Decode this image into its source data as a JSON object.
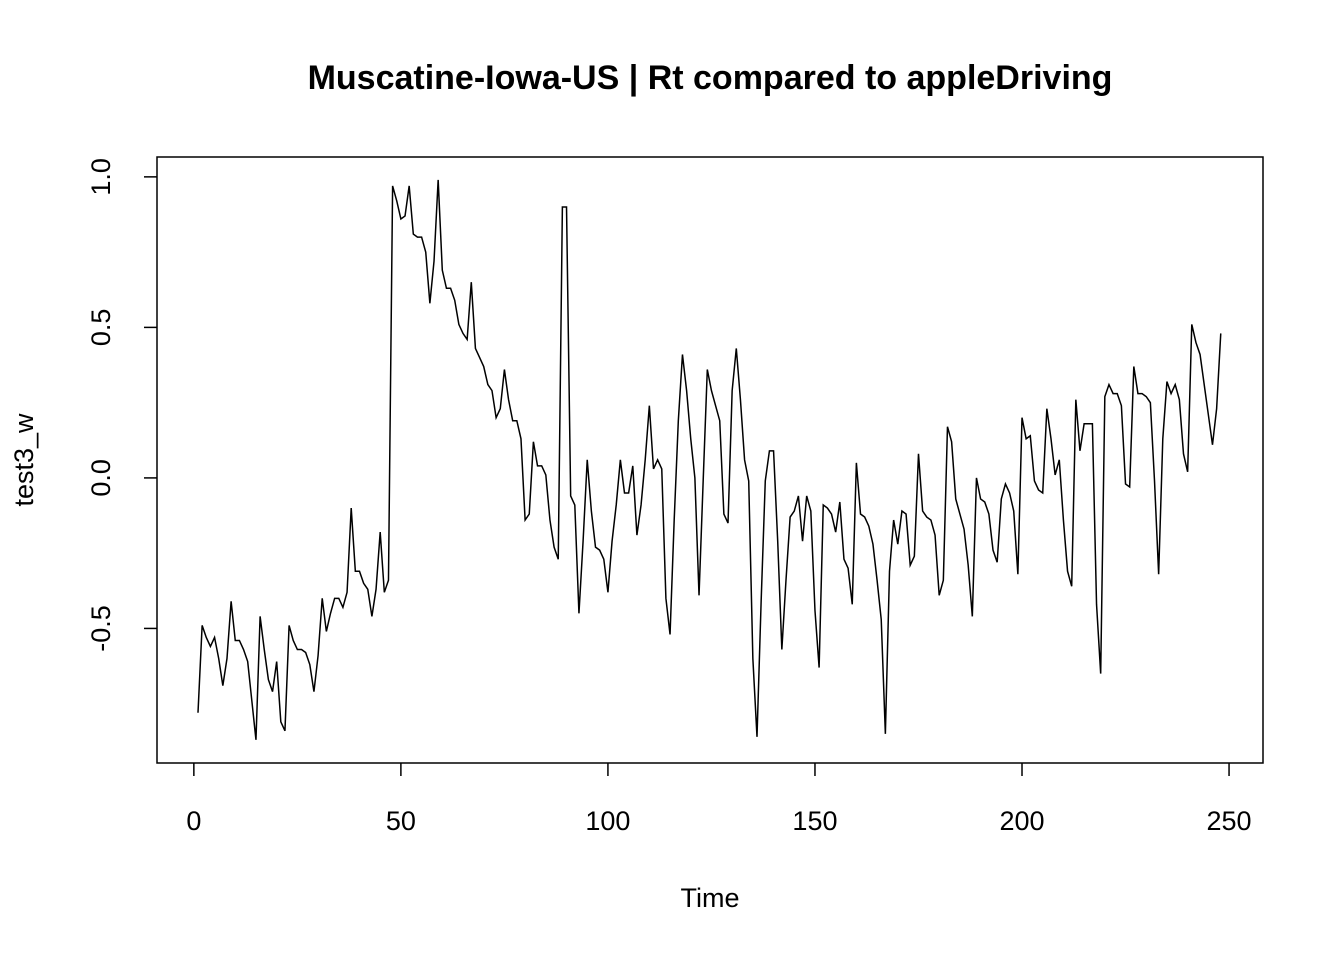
{
  "chart_data": {
    "type": "line",
    "title": "Muscatine-Iowa-US | Rt compared to appleDriving",
    "x_label": "Time",
    "y_label": "test3_w",
    "x": [
      1,
      2,
      3,
      4,
      5,
      6,
      7,
      8,
      9,
      10,
      11,
      12,
      13,
      14,
      15,
      16,
      17,
      18,
      19,
      20,
      21,
      22,
      23,
      24,
      25,
      26,
      27,
      28,
      29,
      30,
      31,
      32,
      33,
      34,
      35,
      36,
      37,
      38,
      39,
      40,
      41,
      42,
      43,
      44,
      45,
      46,
      47,
      48,
      49,
      50,
      51,
      52,
      53,
      54,
      55,
      56,
      57,
      58,
      59,
      60,
      61,
      62,
      63,
      64,
      65,
      66,
      67,
      68,
      69,
      70,
      71,
      72,
      73,
      74,
      75,
      76,
      77,
      78,
      79,
      80,
      81,
      82,
      83,
      84,
      85,
      86,
      87,
      88,
      89,
      90,
      91,
      92,
      93,
      94,
      95,
      96,
      97,
      98,
      99,
      100,
      101,
      102,
      103,
      104,
      105,
      106,
      107,
      108,
      109,
      110,
      111,
      112,
      113,
      114,
      115,
      116,
      117,
      118,
      119,
      120,
      121,
      122,
      123,
      124,
      125,
      126,
      127,
      128,
      129,
      130,
      131,
      132,
      133,
      134,
      135,
      136,
      137,
      138,
      139,
      140,
      141,
      142,
      143,
      144,
      145,
      146,
      147,
      148,
      149,
      150,
      151,
      152,
      153,
      154,
      155,
      156,
      157,
      158,
      159,
      160,
      161,
      162,
      163,
      164,
      165,
      166,
      167,
      168,
      169,
      170,
      171,
      172,
      173,
      174,
      175,
      176,
      177,
      178,
      179,
      180,
      181,
      182,
      183,
      184,
      185,
      186,
      187,
      188,
      189,
      190,
      191,
      192,
      193,
      194,
      195,
      196,
      197,
      198,
      199,
      200,
      201,
      202,
      203,
      204,
      205,
      206,
      207,
      208,
      209,
      210,
      211,
      212,
      213,
      214,
      215,
      216,
      217,
      218,
      219,
      220,
      221,
      222,
      223,
      224,
      225,
      226,
      227,
      228,
      229,
      230,
      231,
      232,
      233,
      234,
      235,
      236,
      237,
      238,
      239,
      240,
      241,
      242,
      243,
      244,
      245,
      246,
      247,
      248
    ],
    "series": [
      {
        "color": "#000000",
        "values": [
          -0.78,
          -0.49,
          -0.53,
          -0.56,
          -0.53,
          -0.6,
          -0.69,
          -0.6,
          -0.41,
          -0.54,
          -0.54,
          -0.57,
          -0.61,
          -0.74,
          -0.87,
          -0.46,
          -0.57,
          -0.67,
          -0.71,
          -0.61,
          -0.81,
          -0.84,
          -0.49,
          -0.54,
          -0.57,
          -0.57,
          -0.58,
          -0.62,
          -0.71,
          -0.59,
          -0.4,
          -0.51,
          -0.45,
          -0.4,
          -0.4,
          -0.43,
          -0.38,
          -0.1,
          -0.31,
          -0.31,
          -0.35,
          -0.37,
          -0.46,
          -0.37,
          -0.18,
          -0.38,
          -0.34,
          0.97,
          0.92,
          0.86,
          0.87,
          0.97,
          0.81,
          0.8,
          0.8,
          0.75,
          0.58,
          0.72,
          0.99,
          0.69,
          0.63,
          0.63,
          0.59,
          0.51,
          0.48,
          0.46,
          0.65,
          0.43,
          0.4,
          0.37,
          0.31,
          0.29,
          0.2,
          0.23,
          0.36,
          0.26,
          0.19,
          0.19,
          0.13,
          -0.14,
          -0.12,
          0.12,
          0.04,
          0.04,
          0.01,
          -0.14,
          -0.23,
          -0.27,
          0.9,
          0.9,
          -0.06,
          -0.09,
          -0.45,
          -0.21,
          0.06,
          -0.11,
          -0.23,
          -0.24,
          -0.27,
          -0.38,
          -0.21,
          -0.09,
          0.06,
          -0.05,
          -0.05,
          0.04,
          -0.19,
          -0.09,
          0.06,
          0.24,
          0.03,
          0.06,
          0.03,
          -0.4,
          -0.52,
          -0.14,
          0.19,
          0.41,
          0.29,
          0.13,
          0.0,
          -0.39,
          -0.01,
          0.36,
          0.29,
          0.24,
          0.19,
          -0.12,
          -0.15,
          0.29,
          0.43,
          0.26,
          0.06,
          -0.01,
          -0.6,
          -0.86,
          -0.41,
          -0.01,
          0.09,
          0.09,
          -0.21,
          -0.57,
          -0.34,
          -0.13,
          -0.11,
          -0.06,
          -0.21,
          -0.06,
          -0.11,
          -0.44,
          -0.63,
          -0.09,
          -0.1,
          -0.12,
          -0.18,
          -0.08,
          -0.27,
          -0.3,
          -0.42,
          0.05,
          -0.12,
          -0.13,
          -0.16,
          -0.22,
          -0.34,
          -0.47,
          -0.85,
          -0.31,
          -0.14,
          -0.22,
          -0.11,
          -0.12,
          -0.29,
          -0.26,
          0.08,
          -0.11,
          -0.13,
          -0.14,
          -0.19,
          -0.39,
          -0.34,
          0.17,
          0.12,
          -0.07,
          -0.12,
          -0.17,
          -0.29,
          -0.46,
          0.0,
          -0.07,
          -0.08,
          -0.12,
          -0.24,
          -0.28,
          -0.07,
          -0.02,
          -0.05,
          -0.11,
          -0.32,
          0.2,
          0.13,
          0.14,
          -0.01,
          -0.04,
          -0.05,
          0.23,
          0.13,
          0.01,
          0.06,
          -0.14,
          -0.31,
          -0.36,
          0.26,
          0.09,
          0.18,
          0.18,
          0.18,
          -0.42,
          -0.65,
          0.27,
          0.31,
          0.28,
          0.28,
          0.24,
          -0.02,
          -0.03,
          0.37,
          0.28,
          0.28,
          0.27,
          0.25,
          -0.01,
          -0.32,
          0.13,
          0.32,
          0.28,
          0.31,
          0.26,
          0.08,
          0.02,
          0.51,
          0.45,
          0.41,
          0.31,
          0.21,
          0.11,
          0.23,
          0.48
        ]
      }
    ],
    "xlim": [
      -8.9,
      258.2
    ],
    "ylim": [
      -0.947,
      1.066
    ],
    "xticks": [
      0,
      50,
      100,
      150,
      200,
      250
    ],
    "yticks": [
      {
        "value": -0.5,
        "label": "-0.5"
      },
      {
        "value": 0,
        "label": "0.0"
      },
      {
        "value": 0.5,
        "label": "0.5"
      },
      {
        "value": 1,
        "label": "1.0"
      }
    ]
  }
}
